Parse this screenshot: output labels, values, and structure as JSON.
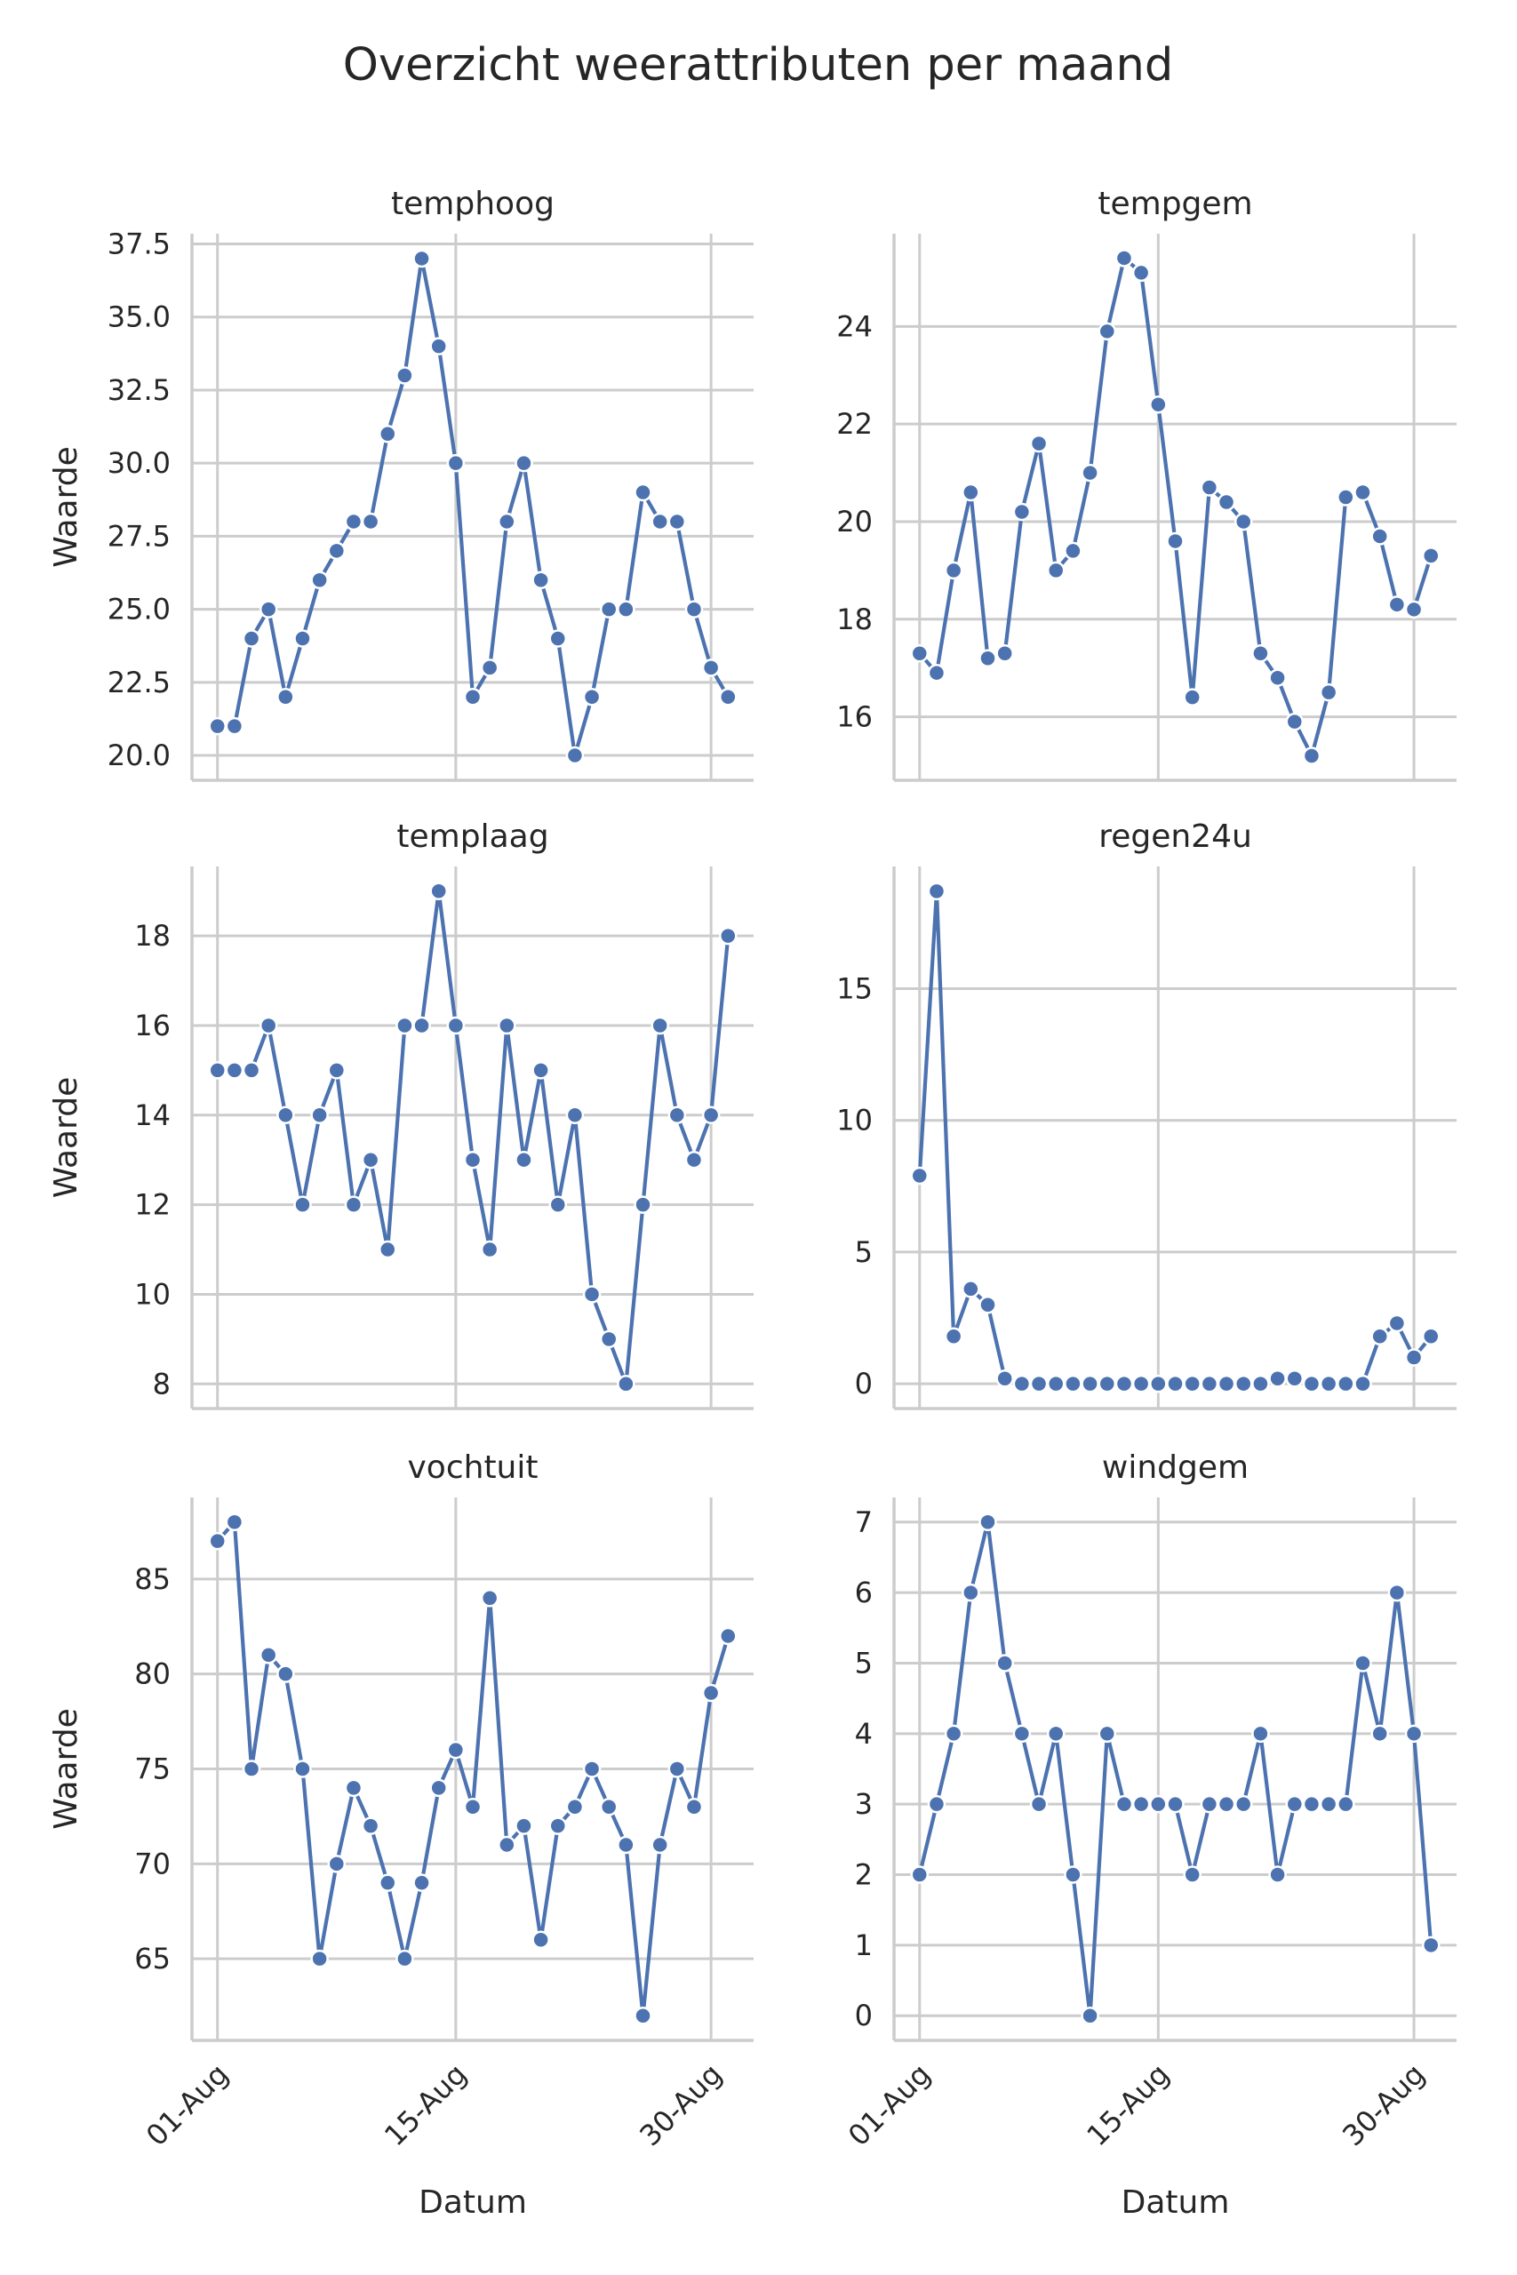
{
  "chart_data": {
    "type": "line",
    "title": "Overzicht weerattributen per maand",
    "xlabel": "Datum",
    "ylabel": "Waarde",
    "x": [
      "01-Aug",
      "02-Aug",
      "03-Aug",
      "04-Aug",
      "05-Aug",
      "06-Aug",
      "07-Aug",
      "08-Aug",
      "09-Aug",
      "10-Aug",
      "11-Aug",
      "12-Aug",
      "13-Aug",
      "14-Aug",
      "15-Aug",
      "16-Aug",
      "17-Aug",
      "18-Aug",
      "19-Aug",
      "20-Aug",
      "21-Aug",
      "22-Aug",
      "23-Aug",
      "24-Aug",
      "25-Aug",
      "26-Aug",
      "27-Aug",
      "28-Aug",
      "29-Aug",
      "30-Aug",
      "31-Aug"
    ],
    "xticks": [
      "01-Aug",
      "15-Aug",
      "30-Aug"
    ],
    "grid": true,
    "marker": "circle",
    "color": "#4c72b0",
    "panels": [
      {
        "name": "temphoog",
        "ylim": [
          19.15,
          37.85
        ],
        "yticks": [
          "20.0",
          "22.5",
          "25.0",
          "27.5",
          "30.0",
          "32.5",
          "35.0",
          "37.5"
        ],
        "ytick_values": [
          20,
          22.5,
          25,
          27.5,
          30,
          32.5,
          35,
          37.5
        ],
        "values": [
          21,
          21,
          24,
          25,
          22,
          24,
          26,
          27,
          28,
          28,
          31,
          33,
          37,
          34,
          30,
          22,
          23,
          28,
          30,
          26,
          24,
          20,
          22,
          25,
          25,
          29,
          28,
          28,
          25,
          23,
          22
        ]
      },
      {
        "name": "tempgem",
        "ylim": [
          14.7,
          25.9
        ],
        "yticks": [
          "16",
          "18",
          "20",
          "22",
          "24"
        ],
        "ytick_values": [
          16,
          18,
          20,
          22,
          24
        ],
        "values": [
          17.3,
          16.9,
          19.0,
          20.6,
          17.2,
          17.3,
          20.2,
          21.6,
          19.0,
          19.4,
          21.0,
          23.9,
          25.4,
          25.1,
          22.4,
          19.6,
          16.4,
          20.7,
          20.4,
          20.0,
          17.3,
          16.8,
          15.9,
          15.2,
          16.5,
          20.5,
          20.6,
          19.7,
          18.3,
          18.2,
          19.3
        ]
      },
      {
        "name": "templaag",
        "ylim": [
          7.45,
          19.55
        ],
        "yticks": [
          "8",
          "10",
          "12",
          "14",
          "16",
          "18"
        ],
        "ytick_values": [
          8,
          10,
          12,
          14,
          16,
          18
        ],
        "values": [
          15,
          15,
          15,
          16,
          14,
          12,
          14,
          15,
          12,
          13,
          11,
          16,
          16,
          19,
          16,
          13,
          11,
          16,
          13,
          15,
          12,
          14,
          10,
          9,
          8,
          12,
          16,
          14,
          13,
          14,
          18
        ]
      },
      {
        "name": "regen24u",
        "ylim": [
          -0.94,
          19.64
        ],
        "yticks": [
          "0",
          "5",
          "10",
          "15"
        ],
        "ytick_values": [
          0,
          5,
          10,
          15
        ],
        "values": [
          7.9,
          18.7,
          1.8,
          3.6,
          3.0,
          0.2,
          0,
          0,
          0,
          0,
          0,
          0,
          0,
          0,
          0,
          0,
          0,
          0,
          0,
          0,
          0,
          0.2,
          0.2,
          0,
          0,
          0,
          0,
          1.8,
          2.3,
          1.0,
          1.8
        ]
      },
      {
        "name": "vochtuit",
        "ylim": [
          60.7,
          89.3
        ],
        "yticks": [
          "65",
          "70",
          "75",
          "80",
          "85"
        ],
        "ytick_values": [
          65,
          70,
          75,
          80,
          85
        ],
        "values": [
          87,
          88,
          75,
          81,
          80,
          75,
          65,
          70,
          74,
          72,
          69,
          65,
          69,
          74,
          76,
          73,
          84,
          71,
          72,
          66,
          72,
          73,
          75,
          73,
          71,
          62,
          71,
          75,
          73,
          79,
          82
        ]
      },
      {
        "name": "windgem",
        "ylim": [
          -0.35,
          7.35
        ],
        "yticks": [
          "0",
          "1",
          "2",
          "3",
          "4",
          "5",
          "6",
          "7"
        ],
        "ytick_values": [
          0,
          1,
          2,
          3,
          4,
          5,
          6,
          7
        ],
        "values": [
          2,
          3,
          4,
          6,
          7,
          5,
          4,
          3,
          4,
          2,
          0,
          4,
          3,
          3,
          3,
          3,
          2,
          3,
          3,
          3,
          4,
          2,
          3,
          3,
          3,
          3,
          5,
          4,
          6,
          4,
          1
        ]
      }
    ]
  }
}
